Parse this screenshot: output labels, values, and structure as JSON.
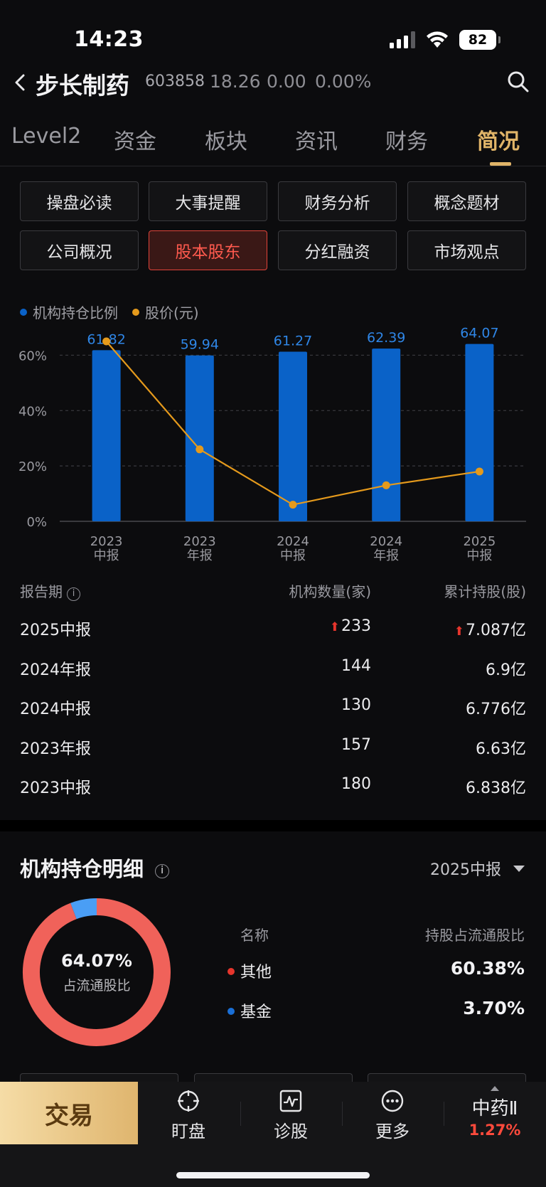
{
  "status_bar": {
    "time": "14:23",
    "battery": "82"
  },
  "header": {
    "name": "步长制药",
    "code": "603858",
    "price": "18.26",
    "change": "0.00",
    "pct": "0.00%"
  },
  "tabs": [
    {
      "label": "Level2"
    },
    {
      "label": "资金"
    },
    {
      "label": "板块"
    },
    {
      "label": "资讯"
    },
    {
      "label": "财务"
    },
    {
      "label": "简况",
      "active": true
    }
  ],
  "buttons": [
    {
      "label": "操盘必读"
    },
    {
      "label": "大事提醒"
    },
    {
      "label": "财务分析"
    },
    {
      "label": "概念题材"
    },
    {
      "label": "公司概况"
    },
    {
      "label": "股本股东",
      "active": true
    },
    {
      "label": "分红融资"
    },
    {
      "label": "市场观点"
    }
  ],
  "legend": {
    "series1": "机构持仓比例",
    "series2": "股价(元)"
  },
  "colors": {
    "bar": "#0a62c8",
    "line": "#e59a1c",
    "accent_gold": "#e0b468",
    "up_red": "#e6352c",
    "donut_other": "#f0625a",
    "donut_fund": "#4a9ef5"
  },
  "chart_data": {
    "type": "bar",
    "categories": [
      "2023 中报",
      "2023 年报",
      "2024 中报",
      "2024 年报",
      "2025 中报"
    ],
    "category_lines": [
      [
        "2023",
        "中报"
      ],
      [
        "2023",
        "年报"
      ],
      [
        "2024",
        "中报"
      ],
      [
        "2024",
        "年报"
      ],
      [
        "2025",
        "中报"
      ]
    ],
    "series": [
      {
        "name": "机构持仓比例",
        "type": "bar",
        "values": [
          61.82,
          59.94,
          61.27,
          62.39,
          64.07
        ],
        "value_labels": [
          "61.82",
          "59.94",
          "61.27",
          "62.39",
          "64.07"
        ]
      },
      {
        "name": "股价(元)",
        "type": "line",
        "values_on_pct_axis": [
          65,
          26,
          6,
          13,
          18
        ]
      }
    ],
    "y_ticks": [
      "0%",
      "20%",
      "40%",
      "60%"
    ],
    "y_tick_values": [
      0,
      20,
      40,
      60
    ],
    "ylim": [
      0,
      65
    ],
    "grid": true
  },
  "table": {
    "headers": {
      "period": "报告期",
      "count": "机构数量(家)",
      "shares": "累计持股(股)"
    },
    "rows": [
      {
        "period": "2025中报",
        "count": "233",
        "shares": "7.087亿",
        "up": true
      },
      {
        "period": "2024年报",
        "count": "144",
        "shares": "6.9亿"
      },
      {
        "period": "2024中报",
        "count": "130",
        "shares": "6.776亿"
      },
      {
        "period": "2023年报",
        "count": "157",
        "shares": "6.63亿"
      },
      {
        "period": "2023中报",
        "count": "180",
        "shares": "6.838亿"
      }
    ]
  },
  "holdings": {
    "title": "机构持仓明细",
    "period": "2025中报",
    "center_value": "64.07%",
    "center_label": "占流通股比",
    "col_name": "名称",
    "col_ratio": "持股占流通股比",
    "items": [
      {
        "name": "其他",
        "value": "60.38%",
        "pct": 60.38,
        "color": "#e6352c"
      },
      {
        "name": "基金",
        "value": "3.70%",
        "pct": 3.7,
        "color": "#1a6fd6"
      }
    ]
  },
  "bottom_nav": {
    "trade": "交易",
    "items": [
      {
        "label": "盯盘",
        "icon": "crosshair-icon"
      },
      {
        "label": "诊股",
        "icon": "pulse-chart-icon"
      },
      {
        "label": "更多",
        "icon": "more-dots-icon"
      }
    ],
    "sector_name": "中药Ⅱ",
    "sector_pct": "1.27%"
  }
}
